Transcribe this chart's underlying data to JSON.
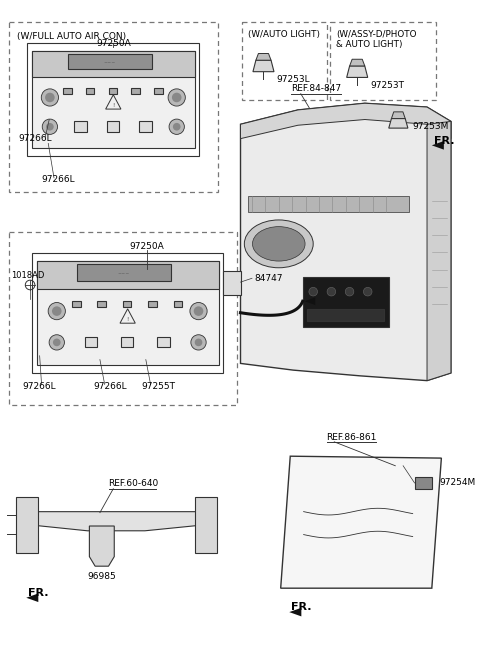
{
  "bg_color": "#ffffff",
  "lc": "#333333",
  "tc": "#000000",
  "dark": "#111111",
  "labels": {
    "full_auto": "(W/FULL AUTO AIR CON)",
    "auto_light": "(W/AUTO LIGHT)",
    "assy_photo": "(W/ASSY-D/PHOTO\n& AUTO LIGHT)",
    "ref_84_847": "REF.84-847",
    "ref_86_861": "REF.86-861",
    "ref_60_640": "REF.60-640",
    "p97250A": "97250A",
    "p97266L": "97266L",
    "p97255T": "97255T",
    "p97253L": "97253L",
    "p97253T": "97253T",
    "p97253M": "97253M",
    "p84747": "84747",
    "p1018AD": "1018AD",
    "p97254M": "97254M",
    "p96985": "96985",
    "FR": "FR."
  }
}
